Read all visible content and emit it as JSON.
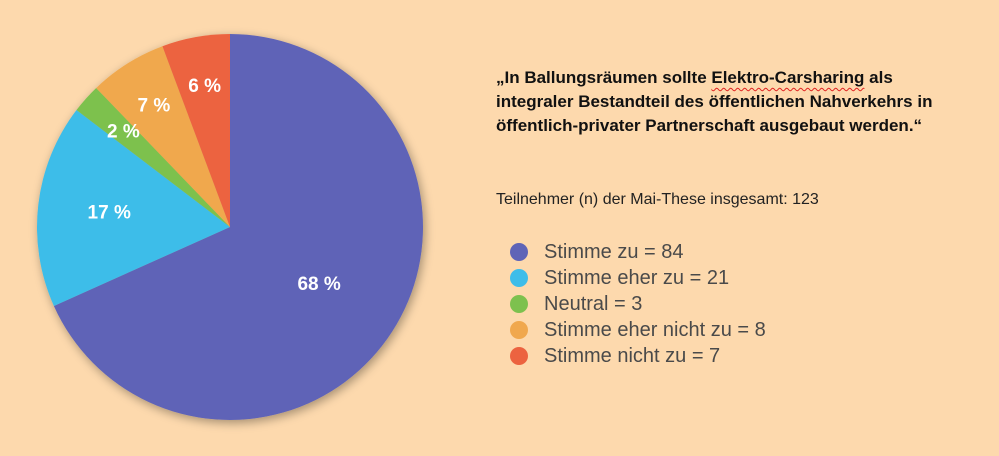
{
  "quote": {
    "before": "„In Ballungsräumen sollte ",
    "highlight": "Elektro-Carsharing",
    "after": " als integraler Bestandteil des öffentlichen Nahverkehrs in öffentlich-privater Partnerschaft ausgebaut werden.“"
  },
  "participants": "Teilnehmer (n) der Mai-These insgesamt: 123",
  "chart_data": {
    "type": "pie",
    "title": "",
    "slices": [
      {
        "label": "Stimme zu = 84",
        "value": 84,
        "percent_label": "68 %",
        "color": "#5f64b7"
      },
      {
        "label": "Stimme eher zu = 21",
        "value": 21,
        "percent_label": "17 %",
        "color": "#3ebde9"
      },
      {
        "label": "Neutral = 3",
        "value": 3,
        "percent_label": "2 %",
        "color": "#7dc14e"
      },
      {
        "label": "Stimme eher nicht zu = 8",
        "value": 8,
        "percent_label": "7 %",
        "color": "#f0a84e"
      },
      {
        "label": "Stimme nicht zu = 7",
        "value": 7,
        "percent_label": "6 %",
        "color": "#ec6340"
      }
    ]
  }
}
